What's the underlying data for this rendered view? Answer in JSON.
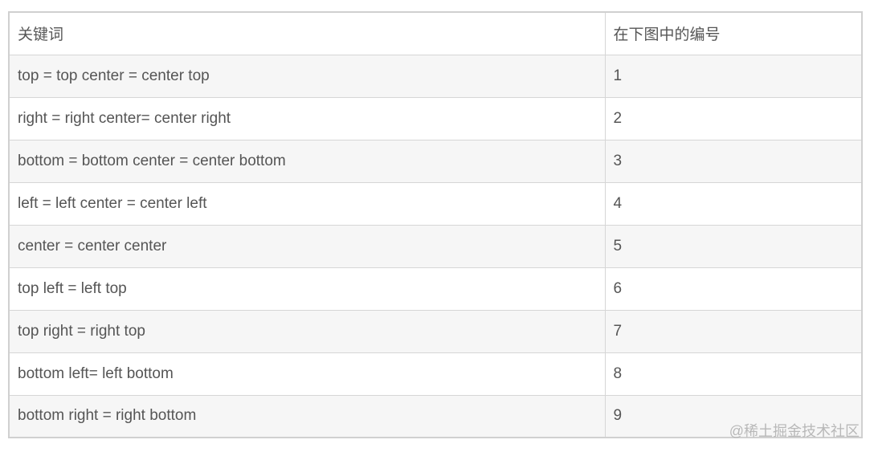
{
  "table": {
    "headers": [
      "关键词",
      "在下图中的编号"
    ],
    "rows": [
      [
        "top = top center = center top",
        "1"
      ],
      [
        "right = right center= center right",
        "2"
      ],
      [
        "bottom = bottom center = center bottom",
        "3"
      ],
      [
        "left = left center = center left",
        "4"
      ],
      [
        "center = center center",
        "5"
      ],
      [
        "top left = left top",
        "6"
      ],
      [
        "top right  =  right top",
        "7"
      ],
      [
        "bottom left= left bottom",
        "8"
      ],
      [
        "bottom right = right bottom",
        "9"
      ]
    ]
  },
  "watermark": "@稀土掘金技术社区"
}
